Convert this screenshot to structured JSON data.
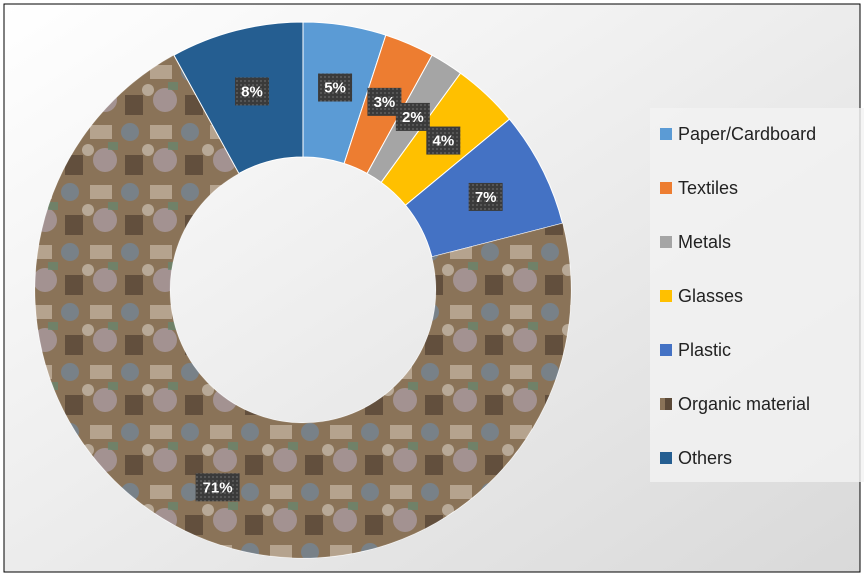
{
  "chart_data": {
    "type": "donut",
    "categories": [
      "Paper/Cardboard",
      "Textiles",
      "Metals",
      "Glasses",
      "Plastic",
      "Organic material",
      "Others"
    ],
    "values": [
      5,
      3,
      2,
      4,
      7,
      71,
      8
    ],
    "value_labels": [
      "5%",
      "3%",
      "2%",
      "4%",
      "7%",
      "71%",
      "8%"
    ],
    "colors": [
      "#5b9bd5",
      "#ed7d31",
      "#a5a5a5",
      "#ffc000",
      "#4472c4",
      "#8a7358",
      "#255e91"
    ],
    "legend": "right"
  }
}
